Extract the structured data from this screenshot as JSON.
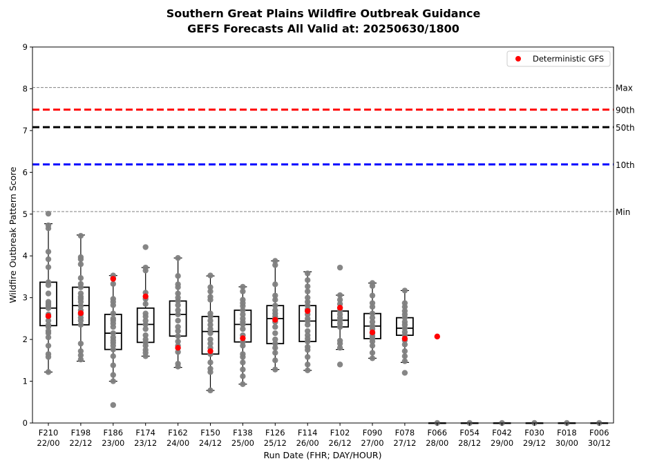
{
  "chart_data": {
    "type": "box",
    "title": "Southern Great Plains Wildfire Outbreak Guidance",
    "subtitle": "GEFS Forecasts All Valid at: 20250630/1800",
    "xlabel": "Run Date (FHR; DAY/HOUR)",
    "ylabel": "Wildfire Outbreak Pattern Score",
    "ylim": [
      0,
      9
    ],
    "yticks": [
      "0",
      "1",
      "2",
      "3",
      "4",
      "5",
      "6",
      "7",
      "8",
      "9"
    ],
    "legend": {
      "placement": "top-right",
      "entries": [
        "Deterministic GFS"
      ]
    },
    "reference_lines": [
      {
        "label": "Max",
        "value": 8.03,
        "color": "#808080",
        "style": "dashed-thin"
      },
      {
        "label": "90th",
        "value": 7.5,
        "color": "#ff0000",
        "style": "dashed-thick"
      },
      {
        "label": "50th",
        "value": 7.08,
        "color": "#000000",
        "style": "dashed-thick"
      },
      {
        "label": "10th",
        "value": 6.19,
        "color": "#0000ff",
        "style": "dashed-thick"
      },
      {
        "label": "Min",
        "value": 5.06,
        "color": "#808080",
        "style": "dashed-thin"
      }
    ],
    "colors": {
      "members": "#808080",
      "deterministic": "#ff0000",
      "box": "#000000"
    },
    "categories": [
      {
        "fhr": "F210",
        "time": "22/00",
        "box": {
          "min": 1.22,
          "q1": 2.33,
          "median": 2.75,
          "q3": 3.37,
          "max": 4.77
        },
        "det": 2.56,
        "members": [
          5.01,
          4.73,
          4.66,
          4.1,
          3.92,
          3.73,
          3.37,
          3.3,
          3.1,
          2.9,
          2.85,
          2.8,
          2.75,
          2.6,
          2.55,
          2.45,
          2.35,
          2.3,
          2.2,
          2.15,
          2.05,
          1.85,
          1.65,
          1.58,
          1.22
        ]
      },
      {
        "fhr": "F198",
        "time": "22/12",
        "box": {
          "min": 1.48,
          "q1": 2.35,
          "median": 2.81,
          "q3": 3.25,
          "max": 4.5
        },
        "det": 2.63,
        "members": [
          4.48,
          3.97,
          3.92,
          3.8,
          3.47,
          3.33,
          3.25,
          3.1,
          3.02,
          2.97,
          2.9,
          2.8,
          2.7,
          2.6,
          2.52,
          2.45,
          2.35,
          1.9,
          1.72,
          1.62,
          1.52
        ]
      },
      {
        "fhr": "F186",
        "time": "23/00",
        "box": {
          "min": 1.0,
          "q1": 1.76,
          "median": 2.15,
          "q3": 2.6,
          "max": 3.53
        },
        "det": 3.45,
        "members": [
          3.53,
          3.47,
          3.33,
          2.97,
          2.9,
          2.82,
          2.62,
          2.5,
          2.45,
          2.38,
          2.3,
          2.15,
          2.05,
          1.98,
          1.92,
          1.85,
          1.76,
          1.6,
          1.38,
          1.15,
          1.0,
          0.43
        ]
      },
      {
        "fhr": "F174",
        "time": "23/12",
        "box": {
          "min": 1.6,
          "q1": 1.93,
          "median": 2.36,
          "q3": 2.75,
          "max": 3.72
        },
        "det": 3.03,
        "members": [
          4.21,
          3.72,
          3.65,
          3.12,
          2.97,
          2.85,
          2.62,
          2.55,
          2.45,
          2.36,
          2.25,
          2.1,
          2.0,
          1.93,
          1.85,
          1.75,
          1.68,
          1.6
        ]
      },
      {
        "fhr": "F162",
        "time": "24/00",
        "box": {
          "min": 1.33,
          "q1": 2.08,
          "median": 2.6,
          "q3": 2.92,
          "max": 3.95
        },
        "det": 1.8,
        "members": [
          3.95,
          3.52,
          3.32,
          3.25,
          3.1,
          3.0,
          2.92,
          2.82,
          2.7,
          2.6,
          2.45,
          2.3,
          2.2,
          2.08,
          1.95,
          1.85,
          1.7,
          1.42,
          1.35
        ]
      },
      {
        "fhr": "F150",
        "time": "24/12",
        "box": {
          "min": 0.78,
          "q1": 1.65,
          "median": 2.19,
          "q3": 2.55,
          "max": 3.52
        },
        "det": 1.72,
        "members": [
          3.53,
          3.25,
          3.15,
          3.02,
          2.95,
          2.62,
          2.55,
          2.45,
          2.35,
          2.25,
          2.15,
          2.0,
          1.9,
          1.8,
          1.65,
          1.45,
          1.3,
          1.22,
          0.78
        ]
      },
      {
        "fhr": "F138",
        "time": "25/00",
        "box": {
          "min": 0.93,
          "q1": 1.94,
          "median": 2.36,
          "q3": 2.7,
          "max": 3.26
        },
        "det": 2.03,
        "members": [
          3.26,
          3.15,
          2.95,
          2.87,
          2.8,
          2.7,
          2.6,
          2.5,
          2.42,
          2.36,
          2.25,
          2.1,
          1.94,
          1.85,
          1.65,
          1.58,
          1.45,
          1.28,
          1.12,
          0.93
        ]
      },
      {
        "fhr": "F126",
        "time": "25/12",
        "box": {
          "min": 1.28,
          "q1": 1.9,
          "median": 2.5,
          "q3": 2.81,
          "max": 3.88
        },
        "det": 2.47,
        "members": [
          3.88,
          3.78,
          3.32,
          3.05,
          2.95,
          2.81,
          2.7,
          2.62,
          2.55,
          2.5,
          2.42,
          2.3,
          2.15,
          2.0,
          1.9,
          1.8,
          1.68,
          1.5,
          1.28
        ]
      },
      {
        "fhr": "F114",
        "time": "26/00",
        "box": {
          "min": 1.26,
          "q1": 1.95,
          "median": 2.44,
          "q3": 2.81,
          "max": 3.62
        },
        "det": 2.68,
        "members": [
          3.58,
          3.42,
          3.27,
          3.15,
          3.0,
          2.9,
          2.81,
          2.72,
          2.6,
          2.5,
          2.44,
          2.35,
          2.2,
          2.1,
          2.02,
          1.95,
          1.82,
          1.75,
          1.58,
          1.4,
          1.26
        ]
      },
      {
        "fhr": "F102",
        "time": "26/12",
        "box": {
          "min": 1.76,
          "q1": 2.3,
          "median": 2.46,
          "q3": 2.68,
          "max": 3.06
        },
        "det": 2.76,
        "members": [
          3.72,
          3.06,
          2.95,
          2.85,
          2.75,
          2.68,
          2.6,
          2.52,
          2.46,
          2.38,
          2.3,
          1.97,
          1.9,
          1.8,
          1.4
        ]
      },
      {
        "fhr": "F090",
        "time": "27/00",
        "box": {
          "min": 1.55,
          "q1": 2.02,
          "median": 2.32,
          "q3": 2.62,
          "max": 3.35
        },
        "det": 2.17,
        "members": [
          3.35,
          3.28,
          3.05,
          2.87,
          2.78,
          2.62,
          2.52,
          2.42,
          2.32,
          2.25,
          2.15,
          2.08,
          2.02,
          1.95,
          1.85,
          1.68,
          1.55
        ]
      },
      {
        "fhr": "F078",
        "time": "27/12",
        "box": {
          "min": 1.45,
          "q1": 2.1,
          "median": 2.27,
          "q3": 2.52,
          "max": 3.17
        },
        "det": 2.02,
        "members": [
          3.17,
          2.87,
          2.78,
          2.68,
          2.6,
          2.52,
          2.42,
          2.35,
          2.27,
          2.18,
          2.1,
          1.98,
          1.88,
          1.72,
          1.6,
          1.48,
          1.2
        ]
      },
      {
        "fhr": "F066",
        "time": "28/00",
        "box": {
          "min": 0,
          "q1": 0,
          "median": 0,
          "q3": 0,
          "max": 0
        },
        "det": 2.07,
        "members": [
          0
        ]
      },
      {
        "fhr": "F054",
        "time": "28/12",
        "box": {
          "min": 0,
          "q1": 0,
          "median": 0,
          "q3": 0,
          "max": 0
        },
        "det": null,
        "members": [
          0
        ]
      },
      {
        "fhr": "F042",
        "time": "29/00",
        "box": {
          "min": 0,
          "q1": 0,
          "median": 0,
          "q3": 0,
          "max": 0
        },
        "det": null,
        "members": [
          0
        ]
      },
      {
        "fhr": "F030",
        "time": "29/12",
        "box": {
          "min": 0,
          "q1": 0,
          "median": 0,
          "q3": 0,
          "max": 0
        },
        "det": null,
        "members": [
          0
        ]
      },
      {
        "fhr": "F018",
        "time": "30/00",
        "box": {
          "min": 0,
          "q1": 0,
          "median": 0,
          "q3": 0,
          "max": 0
        },
        "det": null,
        "members": [
          0
        ]
      },
      {
        "fhr": "F006",
        "time": "30/12",
        "box": {
          "min": 0,
          "q1": 0,
          "median": 0,
          "q3": 0,
          "max": 0
        },
        "det": null,
        "members": [
          0
        ]
      }
    ]
  }
}
